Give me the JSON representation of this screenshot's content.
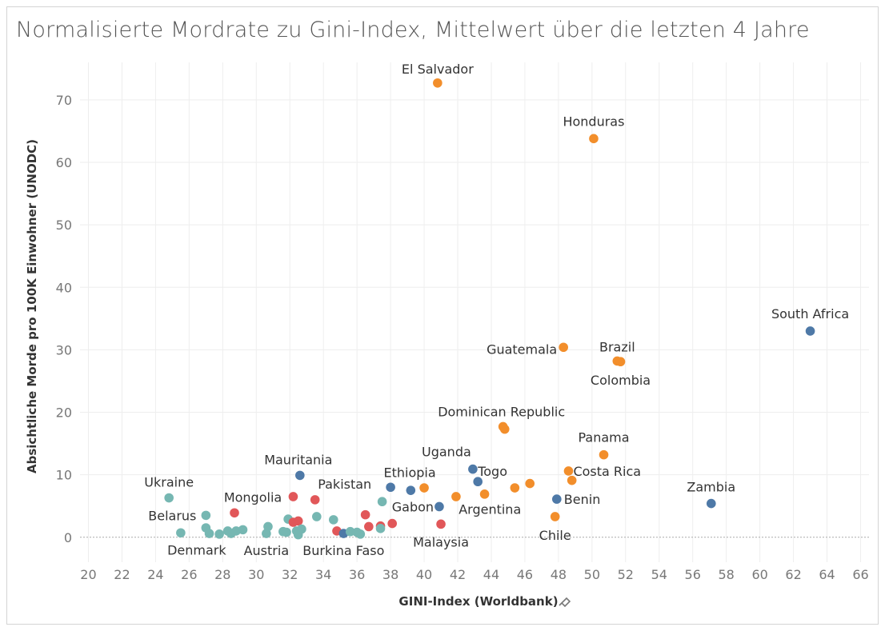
{
  "title": "Normalisierte Mordrate zu Gini-Index, Mittelwert über die letzten 4 Jahre",
  "colors": {
    "teal": "#76b7b2",
    "blue": "#4e79a7",
    "red": "#e15759",
    "orange": "#f28e2b",
    "grid": "#eeeeee",
    "zero_line": "#aaaaaa"
  },
  "chart_data": {
    "type": "scatter",
    "title": "Normalisierte Mordrate zu Gini-Index, Mittelwert über die letzten 4 Jahre",
    "xlabel": "GINI-Index (Worldbank)",
    "ylabel": "Absichtliche Morde pro 100K Einwohner (UNODC)",
    "xlim": [
      19.5,
      66.5
    ],
    "ylim": [
      -4,
      76
    ],
    "x_ticks": [
      20,
      22,
      24,
      26,
      28,
      30,
      32,
      34,
      36,
      38,
      40,
      42,
      44,
      46,
      48,
      50,
      52,
      54,
      56,
      58,
      60,
      62,
      64,
      66
    ],
    "y_ticks": [
      0,
      10,
      20,
      30,
      40,
      50,
      60,
      70
    ],
    "grid": true,
    "legend": "none",
    "points": [
      {
        "x": 40.8,
        "y": 72.7,
        "group": "orange",
        "label": "El Salvador"
      },
      {
        "x": 50.1,
        "y": 63.8,
        "group": "orange",
        "label": "Honduras"
      },
      {
        "x": 63.0,
        "y": 33.0,
        "group": "blue",
        "label": "South Africa"
      },
      {
        "x": 48.3,
        "y": 30.4,
        "group": "orange",
        "label": "Guatemala"
      },
      {
        "x": 51.5,
        "y": 28.2,
        "group": "orange",
        "label": "Brazil"
      },
      {
        "x": 51.7,
        "y": 28.1,
        "group": "orange",
        "label": "Colombia"
      },
      {
        "x": 44.7,
        "y": 17.7,
        "group": "orange",
        "label": "Dominican Republic"
      },
      {
        "x": 44.8,
        "y": 17.3,
        "group": "orange",
        "label": ""
      },
      {
        "x": 50.7,
        "y": 13.2,
        "group": "orange",
        "label": "Panama"
      },
      {
        "x": 48.6,
        "y": 10.6,
        "group": "orange",
        "label": "Costa Rica"
      },
      {
        "x": 48.8,
        "y": 9.1,
        "group": "orange",
        "label": ""
      },
      {
        "x": 42.9,
        "y": 10.9,
        "group": "blue",
        "label": "Uganda"
      },
      {
        "x": 43.2,
        "y": 8.9,
        "group": "blue",
        "label": "Togo"
      },
      {
        "x": 38.0,
        "y": 8.0,
        "group": "blue",
        "label": "Ethiopia"
      },
      {
        "x": 39.2,
        "y": 7.5,
        "group": "blue",
        "label": ""
      },
      {
        "x": 40.0,
        "y": 7.9,
        "group": "orange",
        "label": ""
      },
      {
        "x": 40.9,
        "y": 4.9,
        "group": "blue",
        "label": "Gabon"
      },
      {
        "x": 41.9,
        "y": 6.5,
        "group": "orange",
        "label": ""
      },
      {
        "x": 43.6,
        "y": 6.9,
        "group": "orange",
        "label": ""
      },
      {
        "x": 45.4,
        "y": 7.9,
        "group": "orange",
        "label": ""
      },
      {
        "x": 46.3,
        "y": 8.6,
        "group": "orange",
        "label": "Argentina"
      },
      {
        "x": 47.9,
        "y": 6.1,
        "group": "blue",
        "label": "Benin"
      },
      {
        "x": 47.8,
        "y": 3.3,
        "group": "orange",
        "label": "Chile"
      },
      {
        "x": 57.1,
        "y": 5.4,
        "group": "blue",
        "label": "Zambia"
      },
      {
        "x": 41.0,
        "y": 2.1,
        "group": "red",
        "label": "Malaysia"
      },
      {
        "x": 32.6,
        "y": 9.9,
        "group": "blue",
        "label": "Mauritania"
      },
      {
        "x": 24.8,
        "y": 6.3,
        "group": "teal",
        "label": "Ukraine"
      },
      {
        "x": 28.7,
        "y": 3.9,
        "group": "red",
        "label": "Mongolia"
      },
      {
        "x": 32.2,
        "y": 6.5,
        "group": "red",
        "label": ""
      },
      {
        "x": 33.5,
        "y": 6.0,
        "group": "red",
        "label": "Pakistan"
      },
      {
        "x": 27.0,
        "y": 3.5,
        "group": "teal",
        "label": "Belarus"
      },
      {
        "x": 27.0,
        "y": 1.5,
        "group": "teal",
        "label": ""
      },
      {
        "x": 27.2,
        "y": 0.6,
        "group": "teal",
        "label": ""
      },
      {
        "x": 25.5,
        "y": 0.7,
        "group": "teal",
        "label": "Denmark"
      },
      {
        "x": 27.8,
        "y": 0.5,
        "group": "teal",
        "label": ""
      },
      {
        "x": 28.3,
        "y": 1.0,
        "group": "teal",
        "label": ""
      },
      {
        "x": 28.5,
        "y": 0.6,
        "group": "teal",
        "label": ""
      },
      {
        "x": 28.8,
        "y": 1.0,
        "group": "teal",
        "label": ""
      },
      {
        "x": 29.2,
        "y": 1.2,
        "group": "teal",
        "label": ""
      },
      {
        "x": 30.6,
        "y": 0.6,
        "group": "teal",
        "label": "Austria"
      },
      {
        "x": 30.7,
        "y": 1.7,
        "group": "teal",
        "label": ""
      },
      {
        "x": 31.6,
        "y": 0.9,
        "group": "teal",
        "label": ""
      },
      {
        "x": 31.8,
        "y": 0.8,
        "group": "teal",
        "label": ""
      },
      {
        "x": 31.9,
        "y": 2.9,
        "group": "teal",
        "label": ""
      },
      {
        "x": 32.2,
        "y": 2.4,
        "group": "red",
        "label": ""
      },
      {
        "x": 32.5,
        "y": 2.6,
        "group": "red",
        "label": ""
      },
      {
        "x": 32.4,
        "y": 1.0,
        "group": "teal",
        "label": ""
      },
      {
        "x": 32.5,
        "y": 0.4,
        "group": "teal",
        "label": ""
      },
      {
        "x": 32.7,
        "y": 1.3,
        "group": "teal",
        "label": ""
      },
      {
        "x": 33.6,
        "y": 3.3,
        "group": "teal",
        "label": ""
      },
      {
        "x": 34.6,
        "y": 2.8,
        "group": "teal",
        "label": ""
      },
      {
        "x": 34.8,
        "y": 1.0,
        "group": "red",
        "label": ""
      },
      {
        "x": 35.2,
        "y": 0.6,
        "group": "blue",
        "label": "Burkina Faso"
      },
      {
        "x": 35.6,
        "y": 0.9,
        "group": "teal",
        "label": ""
      },
      {
        "x": 36.0,
        "y": 0.8,
        "group": "teal",
        "label": ""
      },
      {
        "x": 36.2,
        "y": 0.5,
        "group": "teal",
        "label": ""
      },
      {
        "x": 36.5,
        "y": 3.6,
        "group": "red",
        "label": ""
      },
      {
        "x": 36.7,
        "y": 1.7,
        "group": "red",
        "label": ""
      },
      {
        "x": 37.4,
        "y": 1.8,
        "group": "red",
        "label": ""
      },
      {
        "x": 37.4,
        "y": 1.4,
        "group": "teal",
        "label": ""
      },
      {
        "x": 37.5,
        "y": 5.7,
        "group": "teal",
        "label": ""
      },
      {
        "x": 38.1,
        "y": 2.2,
        "group": "red",
        "label": ""
      }
    ]
  }
}
